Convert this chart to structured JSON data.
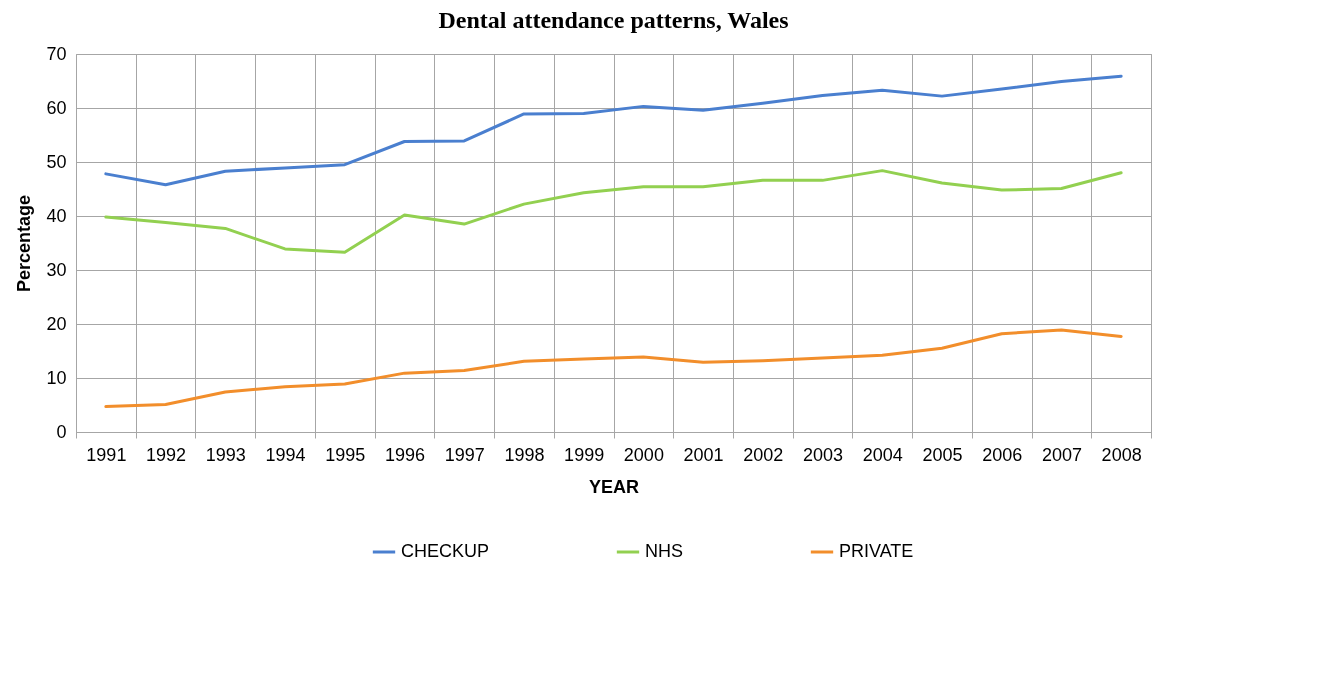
{
  "chart_data": {
    "type": "line",
    "title": "Dental attendance patterns, Wales",
    "xlabel": "YEAR",
    "ylabel": "Percentage",
    "categories": [
      "1991",
      "1992",
      "1993",
      "1994",
      "1995",
      "1996",
      "1997",
      "1998",
      "1999",
      "2000",
      "2001",
      "2002",
      "2003",
      "2004",
      "2005",
      "2006",
      "2007",
      "2008"
    ],
    "series": [
      {
        "name": "CHECKUP",
        "color": "#4a7fcf",
        "values": [
          47.8,
          45.8,
          48.3,
          48.9,
          49.5,
          53.8,
          53.9,
          58.9,
          59.0,
          60.3,
          59.6,
          60.9,
          62.3,
          63.3,
          62.2,
          63.5,
          64.9,
          65.9
        ]
      },
      {
        "name": "NHS",
        "color": "#92d050",
        "values": [
          39.8,
          38.8,
          37.7,
          33.9,
          33.3,
          40.2,
          38.5,
          42.2,
          44.3,
          45.4,
          45.4,
          46.6,
          46.6,
          48.4,
          46.1,
          44.8,
          45.1,
          48.0
        ]
      },
      {
        "name": "PRIVATE",
        "color": "#f28e2b",
        "values": [
          4.7,
          5.1,
          7.4,
          8.4,
          8.9,
          10.9,
          11.4,
          13.1,
          13.5,
          13.9,
          12.9,
          13.2,
          13.7,
          14.2,
          15.5,
          18.2,
          18.9,
          17.7
        ]
      }
    ],
    "ylim": [
      0,
      70
    ],
    "yticks": [
      0,
      10,
      20,
      30,
      40,
      50,
      60,
      70
    ],
    "grid": true,
    "legend": "bottom",
    "marker": "none",
    "line_style": "solid"
  }
}
